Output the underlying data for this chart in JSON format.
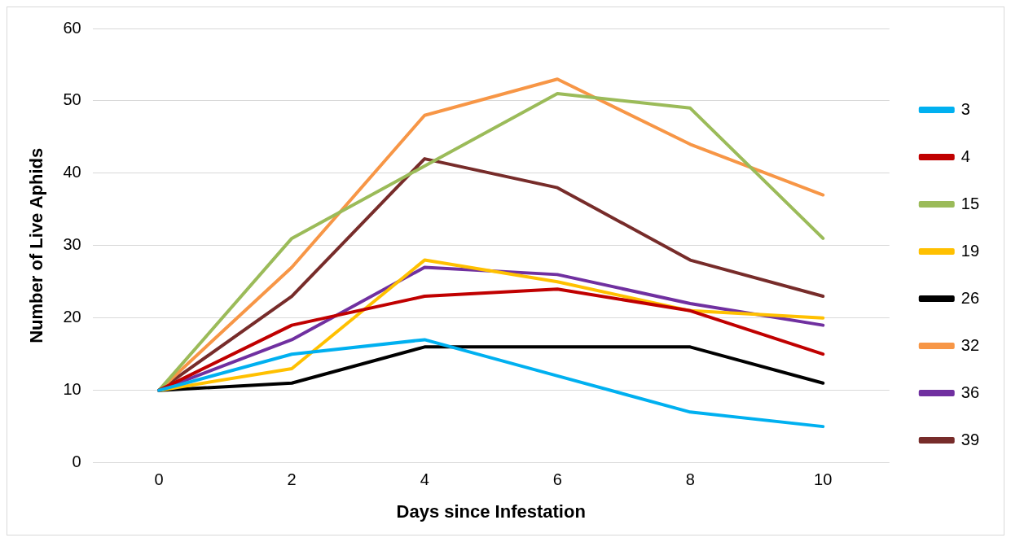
{
  "chart_data": {
    "type": "line",
    "xlabel": "Days since Infestation",
    "ylabel": "Number of Live Aphids",
    "categories": [
      "0",
      "2",
      "4",
      "6",
      "8",
      "10"
    ],
    "series": [
      {
        "name": "3",
        "color": "#00b0f0",
        "values": [
          10,
          15,
          17,
          12,
          7,
          5
        ]
      },
      {
        "name": "4",
        "color": "#c00000",
        "values": [
          10,
          19,
          23,
          24,
          21,
          15
        ]
      },
      {
        "name": "15",
        "color": "#9bbb59",
        "values": [
          10,
          31,
          41,
          51,
          49,
          31
        ]
      },
      {
        "name": "19",
        "color": "#ffc000",
        "values": [
          10,
          13,
          28,
          25,
          21,
          20
        ]
      },
      {
        "name": "26",
        "color": "#000000",
        "values": [
          10,
          11,
          16,
          16,
          16,
          11
        ]
      },
      {
        "name": "32",
        "color": "#f79646",
        "values": [
          10,
          27,
          48,
          53,
          44,
          37
        ]
      },
      {
        "name": "36",
        "color": "#7030a0",
        "values": [
          10,
          17,
          27,
          26,
          22,
          19
        ]
      },
      {
        "name": "39",
        "color": "#772c2a",
        "values": [
          10,
          23,
          42,
          38,
          28,
          23
        ]
      }
    ],
    "ylim": [
      0,
      60
    ],
    "yticks": [
      0,
      10,
      20,
      30,
      40,
      50,
      60
    ],
    "grid": "y",
    "legend": "right",
    "marker": "none",
    "line_style": "solid"
  }
}
